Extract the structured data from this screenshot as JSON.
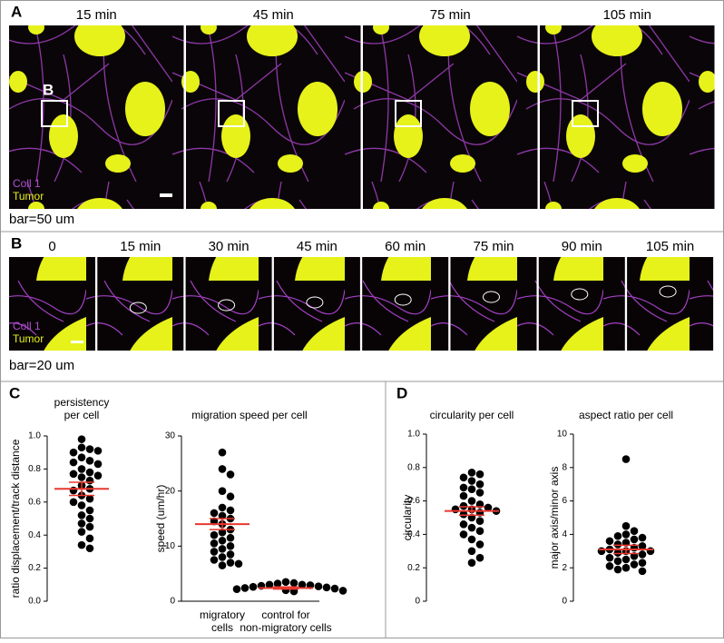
{
  "panels": {
    "A": {
      "label": "A",
      "times": [
        "15 min",
        "45 min",
        "75 min",
        "105 min"
      ],
      "inset_label": "B",
      "channels": [
        "Coll 1",
        "Tumor"
      ],
      "scale_bar": "bar=50 um"
    },
    "B": {
      "label": "B",
      "times": [
        "0",
        "15 min",
        "30 min",
        "45 min",
        "60 min",
        "75 min",
        "90 min",
        "105 min"
      ],
      "channels": [
        "Coll 1",
        "Tumor"
      ],
      "scale_bar": "bar=20 um"
    },
    "C": {
      "label": "C"
    },
    "D": {
      "label": "D"
    }
  },
  "chart_data": [
    {
      "type": "dot",
      "title": [
        "persistency",
        "per cell"
      ],
      "y_label": "ratio displacement/track distance",
      "ylim": [
        0,
        1
      ],
      "yticks": [
        {
          "value": 0,
          "label": "0.0"
        },
        0.2,
        0.4,
        0.6,
        0.8,
        {
          "value": 1,
          "label": "1.0"
        }
      ],
      "color": "#000000",
      "mean_color": "#e8382f",
      "groups": [
        {
          "values": [
            0.98,
            0.93,
            0.92,
            0.9,
            0.91,
            0.87,
            0.85,
            0.84,
            0.83,
            0.8,
            0.78,
            0.77,
            0.76,
            0.75,
            0.73,
            0.7,
            0.68,
            0.67,
            0.64,
            0.62,
            0.6,
            0.58,
            0.55,
            0.52,
            0.5,
            0.47,
            0.45,
            0.42,
            0.38,
            0.34,
            0.32
          ],
          "mean": 0.68,
          "error": 0.04
        }
      ]
    },
    {
      "type": "dot",
      "title": [
        "migration speed per cell"
      ],
      "y_label": "speed (um/hr)",
      "ylim": [
        0,
        30
      ],
      "yticks": [
        0,
        10,
        20,
        30
      ],
      "color": "#000000",
      "mean_color": "#e8382f",
      "groups": [
        {
          "label": [
            "migratory",
            "cells"
          ],
          "values": [
            27,
            24,
            23,
            20,
            19,
            17,
            16.5,
            16,
            15.5,
            15,
            14.5,
            14,
            13,
            12.5,
            12,
            11.5,
            11,
            10.5,
            10,
            9.5,
            9,
            8.5,
            8,
            7.5,
            7,
            6.8,
            6.5
          ],
          "mean": 14,
          "error": 1
        },
        {
          "label": [
            "control for",
            "non-migratory cells"
          ],
          "values": [
            3.5,
            3.3,
            3.2,
            3,
            3,
            2.9,
            2.8,
            2.7,
            2.6,
            2.5,
            2.4,
            2.3,
            2.2,
            2,
            1.9,
            1.8
          ],
          "mean": 2.4,
          "error": 0.2
        }
      ]
    },
    {
      "type": "dot",
      "title": [
        "circularity per cell"
      ],
      "y_label": "circularity",
      "ylim": [
        0,
        1
      ],
      "yticks": [
        0,
        0.2,
        0.4,
        0.6,
        0.8,
        {
          "value": 1,
          "label": "1.0"
        }
      ],
      "color": "#000000",
      "mean_color": "#e8382f",
      "groups": [
        {
          "values": [
            0.77,
            0.76,
            0.74,
            0.72,
            0.7,
            0.68,
            0.67,
            0.65,
            0.63,
            0.6,
            0.58,
            0.57,
            0.56,
            0.55,
            0.55,
            0.54,
            0.53,
            0.52,
            0.5,
            0.48,
            0.46,
            0.44,
            0.42,
            0.4,
            0.37,
            0.34,
            0.3,
            0.26,
            0.23
          ],
          "mean": 0.54,
          "error": 0.025
        }
      ]
    },
    {
      "type": "dot",
      "title": [
        "aspect ratio per cell"
      ],
      "y_label": "major axis/minor axis",
      "ylim": [
        0,
        10
      ],
      "yticks": [
        0,
        2,
        4,
        6,
        8,
        10
      ],
      "color": "#000000",
      "mean_color": "#e8382f",
      "groups": [
        {
          "values": [
            8.5,
            4.5,
            4.2,
            4,
            3.9,
            3.8,
            3.7,
            3.6,
            3.5,
            3.4,
            3.3,
            3.2,
            3.1,
            3,
            3,
            3,
            2.9,
            2.8,
            2.7,
            2.6,
            2.5,
            2.4,
            2.3,
            2.2,
            2.1,
            2,
            1.9,
            1.8
          ],
          "mean": 3.1,
          "error": 0.25
        }
      ]
    }
  ]
}
